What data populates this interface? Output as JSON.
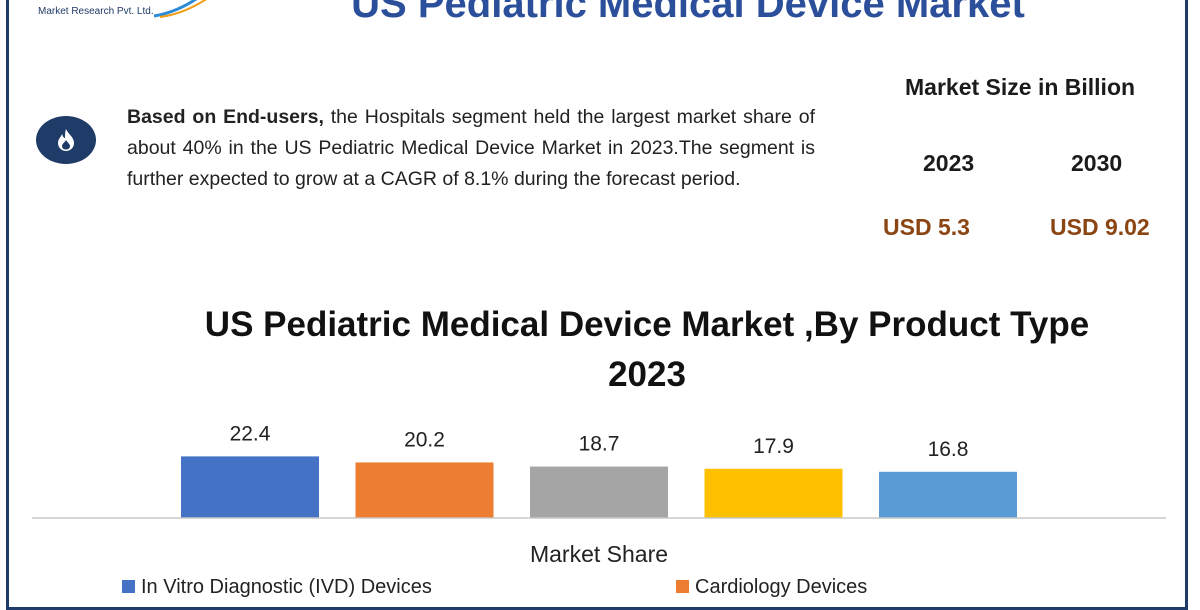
{
  "brand": {
    "company_text": "Market Research Pvt. Ltd."
  },
  "header": {
    "title": "US Pediatric Medical Device Market"
  },
  "info": {
    "lead_bold": "Based on End-users,",
    "body": " the Hospitals segment held the largest market share of about 40% in the US Pediatric Medical Device Market in 2023.The segment is further expected to grow at a CAGR of 8.1% during the forecast period.",
    "icon": "flame-icon"
  },
  "market_size": {
    "title": "Market Size in Billion",
    "year_a": "2023",
    "year_b": "2030",
    "value_a": "USD 5.3",
    "value_b": "USD 9.02"
  },
  "chart_data": {
    "type": "bar",
    "title": "US Pediatric Medical Device Market ,By Product Type 2023",
    "xlabel": "Market Share",
    "ylabel": "",
    "ylim": [
      0,
      100
    ],
    "grid": false,
    "legend_position": "bottom",
    "series": [
      {
        "name": "In Vitro Diagnostic (IVD) Devices",
        "values": [
          22.4
        ],
        "color": "#4472c4"
      },
      {
        "name": "Cardiology Devices",
        "values": [
          20.2
        ],
        "color": "#ed7d31"
      },
      {
        "name": "",
        "values": [
          18.7
        ],
        "color": "#a5a5a5"
      },
      {
        "name": "",
        "values": [
          17.9
        ],
        "color": "#ffc000"
      },
      {
        "name": "",
        "values": [
          16.8
        ],
        "color": "#5b9bd5"
      }
    ],
    "value_labels": [
      "22.4",
      "20.2",
      "18.7",
      "17.9",
      "16.8"
    ]
  },
  "colors": {
    "brand_blue": "#1f3b67",
    "title_blue": "#2b4f9a",
    "value_brown": "#8b4513"
  }
}
